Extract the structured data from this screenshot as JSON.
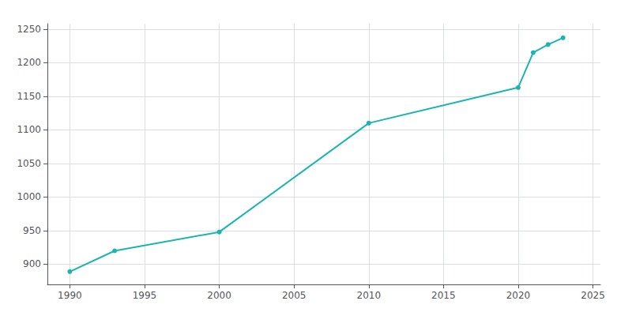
{
  "chart_data": {
    "type": "line",
    "x": [
      1990,
      1993,
      2000,
      2010,
      2020,
      2021,
      2022,
      2023
    ],
    "values": [
      889,
      920,
      948,
      1110,
      1163,
      1215,
      1227,
      1237
    ],
    "color": "#1ab5b0",
    "marker": "circle",
    "xlim": [
      1988.5,
      2025.5
    ],
    "ylim": [
      870,
      1258
    ],
    "xticks": [
      1990,
      1995,
      2000,
      2005,
      2010,
      2015,
      2020,
      2025
    ],
    "yticks": [
      900,
      950,
      1000,
      1050,
      1100,
      1150,
      1200,
      1250
    ],
    "grid": true
  }
}
